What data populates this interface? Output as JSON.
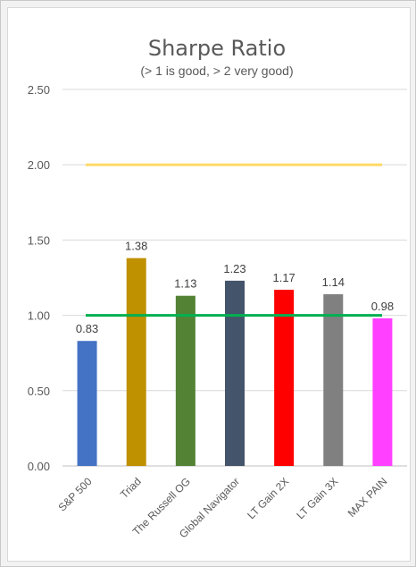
{
  "chart_data": {
    "type": "bar",
    "title": "Sharpe Ratio",
    "subtitle": "(> 1 is good, > 2 very good)",
    "categories": [
      "S&P 500",
      "Triad",
      "The Russell OG",
      "Global Navigator",
      "LT Gain 2X",
      "LT Gain 3X",
      "MAX PAIN"
    ],
    "values": [
      0.83,
      1.38,
      1.13,
      1.23,
      1.17,
      1.14,
      0.98
    ],
    "value_labels": [
      "0.83",
      "1.38",
      "1.13",
      "1.23",
      "1.17",
      "1.14",
      "0.98"
    ],
    "bar_colors": [
      "#4472c4",
      "#bf9000",
      "#548235",
      "#44546a",
      "#ff0000",
      "#808080",
      "#ff40ff"
    ],
    "ylim": [
      0,
      2.5
    ],
    "yticks": [
      0,
      0.5,
      1.0,
      1.5,
      2.0,
      2.5
    ],
    "ytick_labels": [
      "0.00",
      "0.50",
      "1.00",
      "1.50",
      "2.00",
      "2.50"
    ],
    "grid": true,
    "reference_lines": [
      {
        "value": 2.0,
        "color": "#ffd966"
      },
      {
        "value": 1.0,
        "color": "#00b050"
      }
    ],
    "xlabel": "",
    "ylabel": ""
  }
}
